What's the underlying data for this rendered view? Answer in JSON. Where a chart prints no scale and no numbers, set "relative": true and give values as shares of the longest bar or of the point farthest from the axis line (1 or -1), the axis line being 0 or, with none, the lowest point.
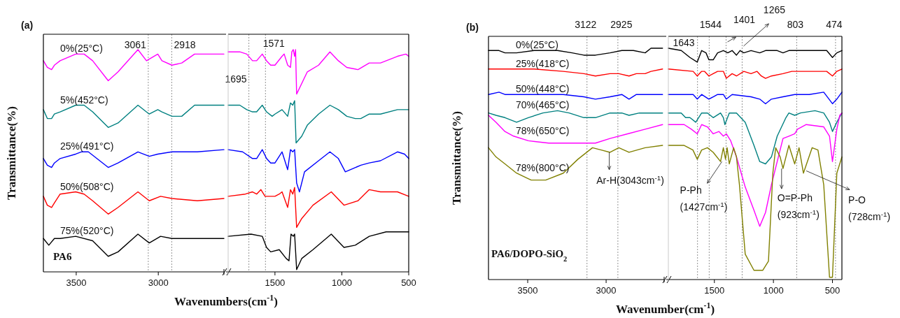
{
  "chart_data": [
    {
      "type": "line",
      "title": "(a)",
      "ylabel": "Transmittance(%)",
      "xlabel": "Wavenumbers(cm$^{-1}$)",
      "relative": true,
      "tick_labels": "x",
      "xlim": [
        3700,
        2600
      ],
      "xticks": [
        3500,
        3000
      ],
      "annotations": [
        "PA6"
      ],
      "ref_lines": [
        {
          "axis": "x",
          "value": 3061,
          "label": "3061",
          "line_style": "dotted",
          "color": "#888888"
        },
        {
          "axis": "x",
          "value": 2918,
          "label": "2918",
          "line_style": "dotted",
          "color": "#888888"
        }
      ],
      "series": [
        {
          "name": "0%(25°C)",
          "color": "#ff00ff",
          "x": [
            3700,
            3676,
            3650,
            3633,
            3598,
            3503,
            3452,
            3400,
            3305,
            3245,
            3124,
            3072,
            3003,
            2978,
            2917,
            2857,
            2779,
            2600
          ],
          "values": [
            0.95,
            0.92,
            0.91,
            0.93,
            0.95,
            0.98,
            0.98,
            0.95,
            0.86,
            0.9,
            1.0,
            0.95,
            0.98,
            0.95,
            0.93,
            0.94,
            0.98,
            0.98
          ]
        },
        {
          "name": "5%(452°C)",
          "color": "#008080",
          "x": [
            3700,
            3676,
            3650,
            3633,
            3598,
            3503,
            3452,
            3400,
            3305,
            3245,
            3124,
            3055,
            3003,
            2978,
            2917,
            2857,
            2779,
            2600
          ],
          "values": [
            0.73,
            0.69,
            0.69,
            0.71,
            0.72,
            0.75,
            0.75,
            0.72,
            0.65,
            0.67,
            0.75,
            0.71,
            0.73,
            0.72,
            0.7,
            0.7,
            0.75,
            0.75
          ]
        },
        {
          "name": "25%(491°C)",
          "color": "#0000ff",
          "x": [
            3700,
            3676,
            3650,
            3633,
            3598,
            3503,
            3469,
            3426,
            3305,
            3245,
            3124,
            3055,
            3003,
            2917,
            2762,
            2600
          ],
          "values": [
            0.51,
            0.48,
            0.47,
            0.49,
            0.51,
            0.53,
            0.54,
            0.54,
            0.47,
            0.49,
            0.54,
            0.52,
            0.53,
            0.54,
            0.54,
            0.55
          ]
        },
        {
          "name": "50%(508°C)",
          "color": "#ff0000",
          "x": [
            3700,
            3676,
            3650,
            3633,
            3598,
            3503,
            3452,
            3400,
            3305,
            3245,
            3124,
            3055,
            2986,
            2917,
            2762,
            2600
          ],
          "values": [
            0.34,
            0.3,
            0.29,
            0.31,
            0.35,
            0.36,
            0.35,
            0.32,
            0.26,
            0.29,
            0.36,
            0.32,
            0.34,
            0.33,
            0.32,
            0.33
          ]
        },
        {
          "name": "75%(520°C)",
          "color": "#000000",
          "x": [
            3700,
            3667,
            3633,
            3598,
            3503,
            3400,
            3305,
            3245,
            3124,
            3055,
            2986,
            2917,
            2762,
            2600
          ],
          "values": [
            0.15,
            0.12,
            0.15,
            0.15,
            0.16,
            0.14,
            0.07,
            0.09,
            0.17,
            0.13,
            0.16,
            0.15,
            0.15,
            0.15
          ]
        }
      ]
    },
    {
      "type": "line",
      "relative": true,
      "tick_labels": "x",
      "xlim": [
        1850,
        500
      ],
      "xticks": [
        1500,
        1000,
        500
      ],
      "ref_lines": [
        {
          "axis": "x",
          "value": 1695,
          "label": "1695",
          "line_style": "dotted",
          "color": "#888888"
        },
        {
          "axis": "x",
          "value": 1571,
          "label": "1571",
          "line_style": "dotted",
          "color": "#888888"
        }
      ],
      "series": [
        {
          "color": "#ff00ff",
          "x": [
            1850,
            1763,
            1711,
            1668,
            1637,
            1595,
            1563,
            1532,
            1500,
            1447,
            1431,
            1405,
            1384,
            1374,
            1363,
            1353,
            1346,
            1338,
            1258,
            1174,
            1089,
            1026,
            963,
            879,
            795,
            711,
            584,
            521,
            500
          ],
          "values": [
            0.99,
            0.99,
            0.98,
            0.95,
            0.95,
            0.98,
            0.95,
            0.93,
            0.93,
            0.97,
            0.98,
            0.93,
            0.92,
            0.99,
            1.0,
            0.97,
            1.0,
            0.8,
            0.9,
            0.93,
            0.99,
            0.95,
            0.92,
            0.91,
            0.94,
            0.94,
            0.97,
            0.98,
            0.97
          ]
        },
        {
          "color": "#008080",
          "x": [
            1850,
            1763,
            1711,
            1668,
            1637,
            1595,
            1563,
            1521,
            1500,
            1447,
            1405,
            1384,
            1367,
            1353,
            1342,
            1300,
            1258,
            1174,
            1089,
            1026,
            963,
            900,
            858,
            795,
            711,
            584,
            521,
            500
          ],
          "values": [
            0.75,
            0.75,
            0.73,
            0.72,
            0.72,
            0.75,
            0.72,
            0.7,
            0.71,
            0.73,
            0.7,
            0.76,
            0.75,
            0.77,
            0.58,
            0.61,
            0.66,
            0.71,
            0.75,
            0.73,
            0.7,
            0.69,
            0.69,
            0.71,
            0.71,
            0.73,
            0.73,
            0.73
          ]
        },
        {
          "color": "#0000ff",
          "x": [
            1850,
            1742,
            1668,
            1637,
            1595,
            1563,
            1532,
            1500,
            1447,
            1405,
            1384,
            1367,
            1353,
            1338,
            1317,
            1279,
            1174,
            1089,
            1026,
            974,
            858,
            795,
            711,
            584,
            531,
            500
          ],
          "values": [
            0.55,
            0.54,
            0.51,
            0.51,
            0.55,
            0.51,
            0.49,
            0.49,
            0.54,
            0.46,
            0.55,
            0.54,
            0.55,
            0.4,
            0.36,
            0.45,
            0.5,
            0.54,
            0.51,
            0.45,
            0.48,
            0.49,
            0.5,
            0.54,
            0.53,
            0.51
          ]
        },
        {
          "color": "#ff0000",
          "x": [
            1850,
            1721,
            1668,
            1637,
            1605,
            1574,
            1532,
            1500,
            1468,
            1447,
            1405,
            1384,
            1367,
            1353,
            1338,
            1300,
            1216,
            1079,
            984,
            879,
            795,
            711,
            584,
            500
          ],
          "values": [
            0.34,
            0.35,
            0.36,
            0.35,
            0.37,
            0.34,
            0.34,
            0.34,
            0.35,
            0.36,
            0.29,
            0.37,
            0.35,
            0.38,
            0.2,
            0.24,
            0.3,
            0.36,
            0.3,
            0.32,
            0.37,
            0.36,
            0.36,
            0.34
          ]
        },
        {
          "color": "#000000",
          "x": [
            1850,
            1679,
            1595,
            1563,
            1532,
            1468,
            1416,
            1395,
            1380,
            1363,
            1353,
            1338,
            1300,
            1216,
            1079,
            984,
            900,
            795,
            669,
            500
          ],
          "values": [
            0.16,
            0.17,
            0.16,
            0.11,
            0.09,
            0.1,
            0.06,
            0.05,
            0.17,
            0.16,
            0.17,
            0.01,
            0.06,
            0.1,
            0.17,
            0.11,
            0.12,
            0.16,
            0.18,
            0.18
          ]
        }
      ]
    },
    {
      "type": "line",
      "title": "(b)",
      "ylabel": "Transmittance(%)",
      "xlabel": "Wavenumber(cm$^{-1}$)",
      "relative": true,
      "tick_labels": "x",
      "xlim": [
        3750,
        2630
      ],
      "xticks": [
        3500,
        3000
      ],
      "annotations": [
        "PA6/DOPO-SiO$_{2}$",
        {
          "text": "Ar-H(3043cm$^{-1}$)",
          "x": 2980,
          "y": 0.55
        }
      ],
      "ref_lines": [
        {
          "axis": "x",
          "value": 3122,
          "label": "3122",
          "line_style": "dotted",
          "color": "#888888"
        },
        {
          "axis": "x",
          "value": 2925,
          "label": "2925",
          "line_style": "dotted",
          "color": "#888888"
        }
      ],
      "series": [
        {
          "name": "0%(25°C)",
          "color": "#000000",
          "x": [
            3750,
            3683,
            3645,
            3571,
            3459,
            3310,
            3217,
            3142,
            3068,
            2975,
            2900,
            2854,
            2826,
            2751,
            2714,
            2640
          ],
          "values": [
            0.99,
            0.99,
            0.98,
            0.98,
            0.99,
            0.99,
            0.98,
            0.97,
            0.97,
            0.98,
            0.99,
            0.99,
            0.99,
            0.98,
            1.0,
            1.0
          ]
        },
        {
          "name": "25%(418°C)",
          "color": "#ff0000",
          "x": [
            3750,
            3459,
            3273,
            3142,
            3068,
            2975,
            2919,
            2854,
            2807,
            2751,
            2714,
            2640
          ],
          "values": [
            0.91,
            0.91,
            0.9,
            0.89,
            0.88,
            0.89,
            0.89,
            0.88,
            0.89,
            0.89,
            0.9,
            0.91
          ]
        },
        {
          "name": "50%(448°C)",
          "color": "#0000ff",
          "x": [
            3750,
            3683,
            3645,
            3571,
            3459,
            3273,
            3142,
            3068,
            2975,
            2900,
            2854,
            2807,
            2714,
            2640
          ],
          "values": [
            0.8,
            0.81,
            0.8,
            0.8,
            0.8,
            0.8,
            0.79,
            0.78,
            0.79,
            0.8,
            0.78,
            0.8,
            0.8,
            0.8
          ]
        },
        {
          "name": "70%(465°C)",
          "color": "#008080",
          "x": [
            3750,
            3702,
            3645,
            3571,
            3496,
            3403,
            3310,
            3236,
            3142,
            3068,
            2975,
            2900,
            2854,
            2788,
            2640
          ],
          "values": [
            0.72,
            0.71,
            0.7,
            0.68,
            0.7,
            0.72,
            0.73,
            0.72,
            0.7,
            0.7,
            0.72,
            0.72,
            0.71,
            0.72,
            0.72
          ]
        },
        {
          "name": "78%(650°C)",
          "color": "#ff00ff",
          "x": [
            3750,
            3702,
            3645,
            3590,
            3496,
            3366,
            3180,
            3068,
            2975,
            2863,
            2751,
            2640
          ],
          "values": [
            0.71,
            0.68,
            0.64,
            0.62,
            0.6,
            0.59,
            0.59,
            0.59,
            0.61,
            0.63,
            0.65,
            0.67
          ]
        },
        {
          "name": "78%(800°C)",
          "color": "#808000",
          "x": [
            3750,
            3702,
            3645,
            3571,
            3478,
            3385,
            3273,
            3180,
            3087,
            3031,
            2975,
            2919,
            2854,
            2751,
            2640
          ],
          "values": [
            0.57,
            0.53,
            0.5,
            0.46,
            0.43,
            0.43,
            0.46,
            0.52,
            0.57,
            0.56,
            0.55,
            0.57,
            0.55,
            0.57,
            0.58
          ]
        }
      ]
    },
    {
      "type": "line",
      "relative": true,
      "tick_labels": "x",
      "xlim": [
        1890,
        420
      ],
      "xticks": [
        1500,
        1000,
        500
      ],
      "annotations": [
        {
          "text": "P-Ph\n(1427cm$^{-1}$)",
          "x": 1436,
          "y": 0.51
        },
        {
          "text": "O=P-Ph\n(923cm$^{-1}$)",
          "x": 931,
          "y": 0.48
        },
        {
          "text": "P-O\n(728cm$^{-1}$)",
          "x": 722,
          "y": 0.47
        }
      ],
      "ref_lines": [
        {
          "axis": "x",
          "value": 1643,
          "label": "1643",
          "line_style": "dotted",
          "color": "#888888"
        },
        {
          "axis": "x",
          "value": 1544,
          "label": "1544",
          "line_style": "dotted",
          "color": "#888888"
        },
        {
          "axis": "x",
          "value": 1401,
          "label": "1401",
          "line_style": "dotted",
          "color": "#888888"
        },
        {
          "axis": "x",
          "value": 1265,
          "label": "1265",
          "line_style": "dotted",
          "color": "#888888"
        },
        {
          "axis": "x",
          "value": 803,
          "label": "803",
          "line_style": "dotted",
          "color": "#888888"
        },
        {
          "axis": "x",
          "value": 474,
          "label": "474",
          "line_style": "dotted",
          "color": "#888888"
        }
      ],
      "series": [
        {
          "color": "#000000",
          "x": [
            1890,
            1781,
            1707,
            1645,
            1608,
            1571,
            1547,
            1510,
            1473,
            1424,
            1387,
            1350,
            1313,
            1283,
            1251,
            1190,
            1116,
            1067,
            1017,
            968,
            919,
            869,
            746,
            623,
            549,
            500,
            463,
            420
          ],
          "values": [
            1.0,
            0.99,
            0.96,
            0.94,
            0.99,
            0.98,
            0.95,
            0.95,
            0.98,
            0.99,
            0.98,
            0.99,
            0.97,
            0.99,
            0.98,
            0.99,
            0.98,
            0.99,
            0.99,
            0.99,
            0.98,
            0.99,
            0.99,
            0.99,
            0.99,
            0.96,
            0.98,
            0.99
          ]
        },
        {
          "color": "#ff0000",
          "x": [
            1890,
            1680,
            1645,
            1608,
            1584,
            1547,
            1510,
            1473,
            1424,
            1399,
            1350,
            1313,
            1251,
            1190,
            1140,
            1103,
            1067,
            1017,
            919,
            845,
            746,
            623,
            549,
            500,
            463,
            420
          ],
          "values": [
            0.91,
            0.9,
            0.88,
            0.9,
            0.9,
            0.88,
            0.89,
            0.9,
            0.9,
            0.87,
            0.89,
            0.88,
            0.9,
            0.89,
            0.9,
            0.88,
            0.87,
            0.88,
            0.89,
            0.9,
            0.9,
            0.9,
            0.9,
            0.88,
            0.9,
            0.91
          ]
        },
        {
          "color": "#0000ff",
          "x": [
            1890,
            1680,
            1645,
            1608,
            1547,
            1510,
            1473,
            1424,
            1399,
            1350,
            1190,
            1116,
            1067,
            1017,
            919,
            820,
            697,
            574,
            500,
            463,
            420
          ],
          "values": [
            0.8,
            0.8,
            0.78,
            0.8,
            0.78,
            0.79,
            0.8,
            0.8,
            0.78,
            0.8,
            0.79,
            0.78,
            0.76,
            0.78,
            0.79,
            0.8,
            0.8,
            0.81,
            0.76,
            0.78,
            0.81
          ]
        },
        {
          "color": "#008080",
          "x": [
            1890,
            1781,
            1744,
            1707,
            1658,
            1608,
            1559,
            1510,
            1448,
            1424,
            1411,
            1374,
            1313,
            1239,
            1165,
            1116,
            1067,
            1017,
            968,
            894,
            869,
            820,
            771,
            648,
            574,
            525,
            500,
            463,
            420
          ],
          "values": [
            0.72,
            0.72,
            0.7,
            0.7,
            0.68,
            0.72,
            0.72,
            0.7,
            0.72,
            0.7,
            0.67,
            0.72,
            0.72,
            0.68,
            0.58,
            0.51,
            0.5,
            0.53,
            0.62,
            0.7,
            0.72,
            0.71,
            0.72,
            0.73,
            0.72,
            0.68,
            0.64,
            0.68,
            0.72
          ]
        },
        {
          "color": "#ff00ff",
          "x": [
            1890,
            1756,
            1695,
            1645,
            1608,
            1559,
            1510,
            1461,
            1424,
            1399,
            1362,
            1313,
            1239,
            1165,
            1116,
            1067,
            1017,
            968,
            919,
            869,
            820,
            796,
            722,
            574,
            525,
            500,
            463,
            438,
            420
          ],
          "values": [
            0.67,
            0.67,
            0.65,
            0.63,
            0.67,
            0.66,
            0.63,
            0.64,
            0.62,
            0.63,
            0.6,
            0.53,
            0.4,
            0.3,
            0.23,
            0.29,
            0.41,
            0.51,
            0.61,
            0.62,
            0.63,
            0.65,
            0.67,
            0.66,
            0.62,
            0.51,
            0.65,
            0.71,
            0.72
          ]
        },
        {
          "color": "#808000",
          "x": [
            1890,
            1756,
            1682,
            1645,
            1608,
            1559,
            1510,
            1448,
            1424,
            1406,
            1392,
            1374,
            1337,
            1313,
            1288,
            1239,
            1165,
            1091,
            1042,
            1005,
            981,
            943,
            919,
            869,
            820,
            783,
            746,
            672,
            623,
            574,
            525,
            500,
            463,
            420
          ],
          "values": [
            0.58,
            0.58,
            0.56,
            0.52,
            0.56,
            0.57,
            0.55,
            0.51,
            0.57,
            0.52,
            0.57,
            0.5,
            0.57,
            0.53,
            0.41,
            0.11,
            0.04,
            0.04,
            0.08,
            0.46,
            0.57,
            0.53,
            0.48,
            0.58,
            0.5,
            0.57,
            0.46,
            0.57,
            0.56,
            0.41,
            0.01,
            0.01,
            0.46,
            0.53
          ]
        }
      ]
    }
  ]
}
